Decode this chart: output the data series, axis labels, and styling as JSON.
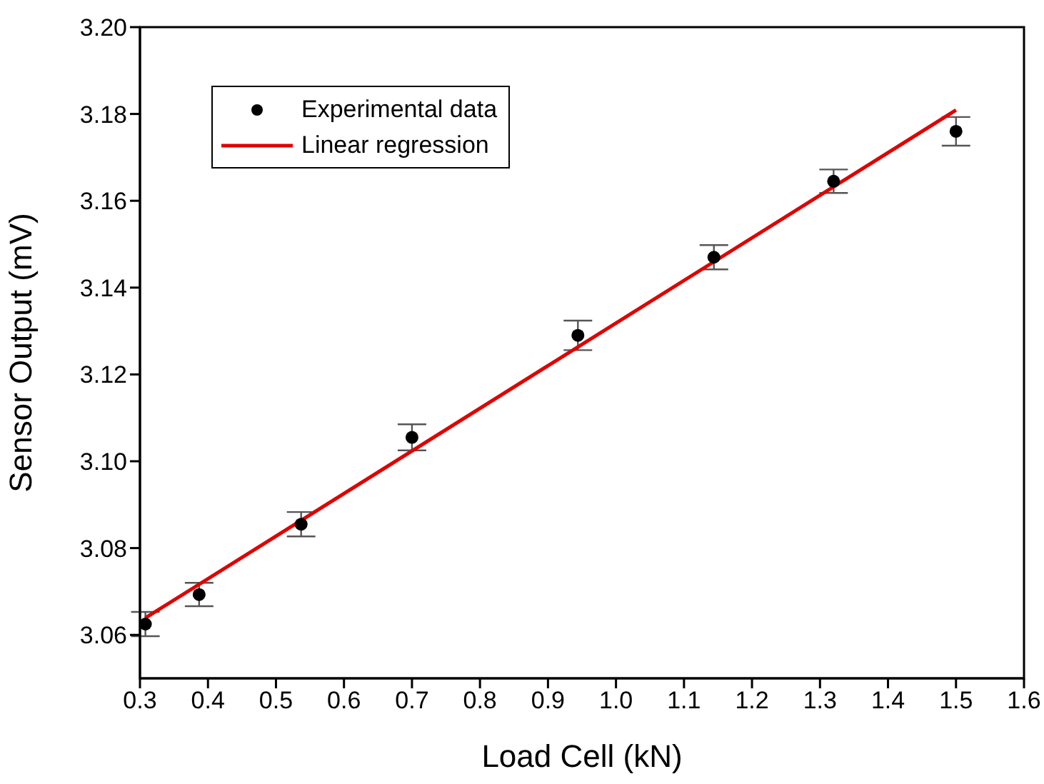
{
  "chart_data": {
    "type": "scatter",
    "xlabel": "Load Cell (kN)",
    "ylabel": "Sensor Output (mV)",
    "xlim": [
      0.3,
      1.6
    ],
    "xticks": [
      0.3,
      0.4,
      0.5,
      0.6,
      0.7,
      0.8,
      0.9,
      {
        "value": 1,
        "label": "1.0"
      },
      1.1,
      1.2,
      1.3,
      1.4,
      1.5,
      1.6
    ],
    "ylim": [
      3.05,
      3.2
    ],
    "yticks": [
      3.06,
      3.08,
      {
        "value": 3.1,
        "label": "3.10"
      },
      3.12,
      3.14,
      3.16,
      3.18,
      {
        "value": 3.2,
        "label": "3.20"
      }
    ],
    "grid": false,
    "legend": "top left",
    "series": [
      {
        "name": "Experimental data",
        "marker": "circle",
        "color": "#000000",
        "x": [
          0.308,
          0.387,
          0.537,
          0.7,
          0.944,
          1.144,
          1.32,
          1.5
        ],
        "values": [
          3.0625,
          3.0693,
          3.0855,
          3.1055,
          3.129,
          3.147,
          3.1645,
          3.176
        ],
        "errors": [
          0.0028,
          0.0027,
          0.0028,
          0.003,
          0.0034,
          0.0028,
          0.0027,
          0.0033
        ]
      },
      {
        "name": "Linear regression",
        "type": "line",
        "color": "#e00000",
        "line_style": "solid",
        "x": [
          0.308,
          1.5
        ],
        "values": [
          3.0639,
          3.1809
        ]
      }
    ]
  }
}
